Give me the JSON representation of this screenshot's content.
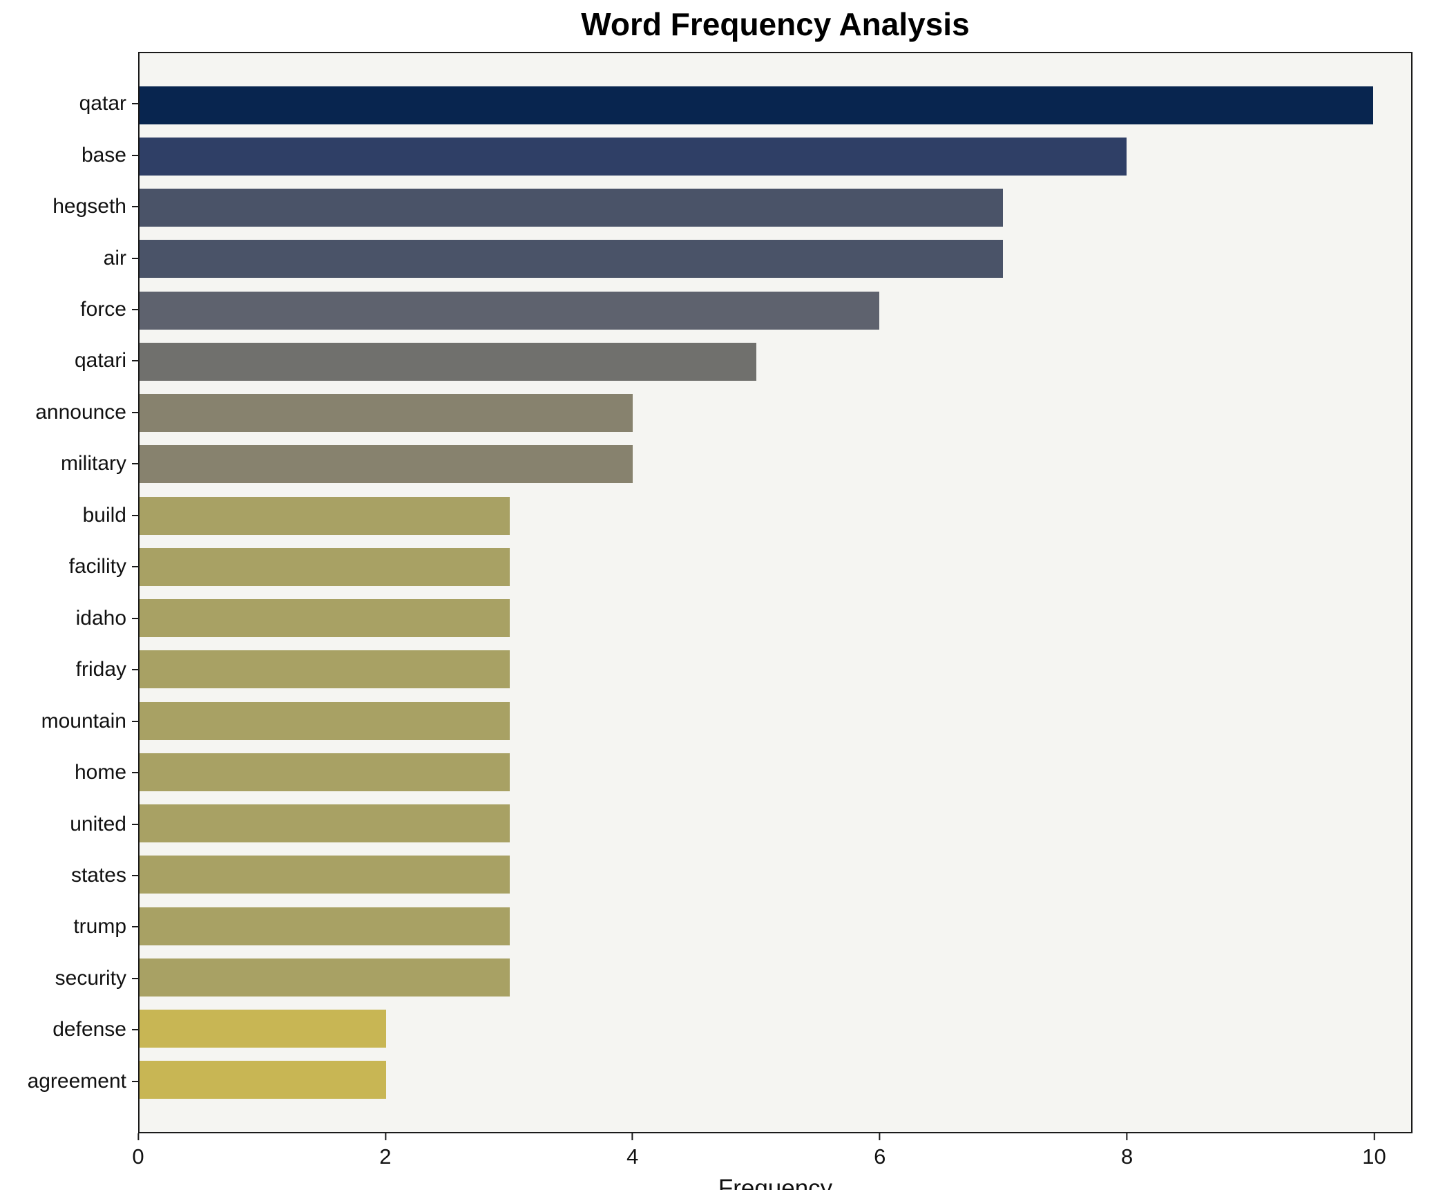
{
  "chart_data": {
    "type": "bar",
    "orientation": "horizontal",
    "title": "Word Frequency Analysis",
    "xlabel": "Frequency",
    "ylabel": "",
    "categories": [
      "qatar",
      "base",
      "hegseth",
      "air",
      "force",
      "qatari",
      "announce",
      "military",
      "build",
      "facility",
      "idaho",
      "friday",
      "mountain",
      "home",
      "united",
      "states",
      "trump",
      "security",
      "defense",
      "agreement"
    ],
    "values": [
      10,
      8,
      7,
      7,
      6,
      5,
      4,
      4,
      3,
      3,
      3,
      3,
      3,
      3,
      3,
      3,
      3,
      3,
      2,
      2
    ],
    "colors": [
      "#08254f",
      "#2f3f66",
      "#4a5368",
      "#4a5368",
      "#5e626e",
      "#70706d",
      "#87826e",
      "#87826e",
      "#a8a164",
      "#a8a164",
      "#a8a164",
      "#a8a164",
      "#a8a164",
      "#a8a164",
      "#a8a164",
      "#a8a164",
      "#a8a164",
      "#a8a164",
      "#c8b654",
      "#c8b654"
    ],
    "xlim": [
      0,
      10.31
    ],
    "xticks": [
      0,
      2,
      4,
      6,
      8,
      10
    ],
    "grid": false,
    "legend": false,
    "plot_bg": "#f5f5f2"
  }
}
